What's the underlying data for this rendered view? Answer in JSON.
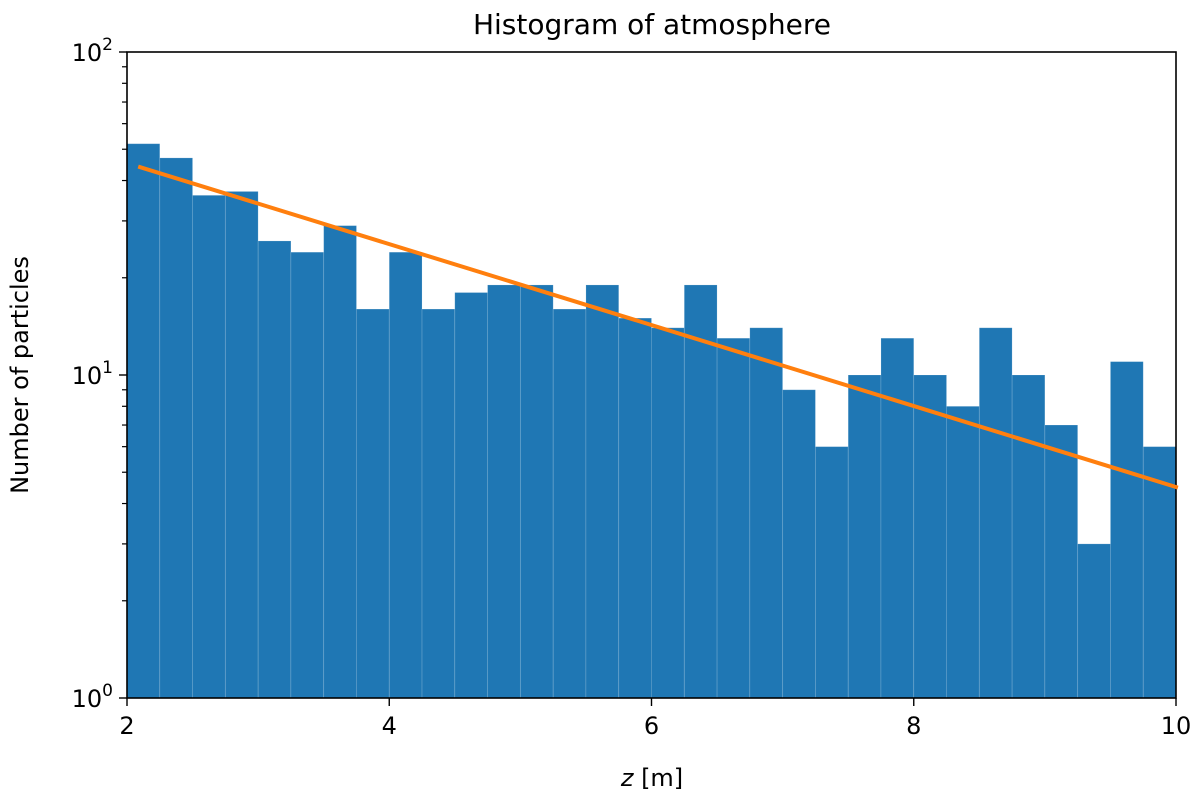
{
  "chart_data": {
    "type": "bar",
    "title": "Histogram of atmosphere",
    "xlabel": {
      "var": "z",
      "unit": "[m]"
    },
    "ylabel": "Number of particles",
    "xlim": [
      2,
      10
    ],
    "ylim": [
      1,
      100
    ],
    "yscale": "log",
    "grid": false,
    "bar_color": "#1f77b4",
    "line_color": "#ff7f0e",
    "x_ticks": [
      {
        "value": 2,
        "label": "2"
      },
      {
        "value": 4,
        "label": "4"
      },
      {
        "value": 6,
        "label": "6"
      },
      {
        "value": 8,
        "label": "8"
      },
      {
        "value": 10,
        "label": "10"
      }
    ],
    "y_ticks": [
      {
        "value": 1,
        "base": "10",
        "exp": "0"
      },
      {
        "value": 10,
        "base": "10",
        "exp": "1"
      },
      {
        "value": 100,
        "base": "10",
        "exp": "2"
      }
    ],
    "bins": {
      "edges": [
        2.0,
        2.25,
        2.5,
        2.75,
        3.0,
        3.25,
        3.5,
        3.75,
        4.0,
        4.25,
        4.5,
        4.75,
        5.0,
        5.25,
        5.5,
        5.75,
        6.0,
        6.25,
        6.5,
        6.75,
        7.0,
        7.25,
        7.5,
        7.75,
        8.0,
        8.25,
        8.5,
        8.75,
        9.0,
        9.25,
        9.5,
        9.75,
        10.0
      ],
      "counts": [
        52,
        47,
        36,
        37,
        26,
        24,
        29,
        16,
        24,
        16,
        18,
        19,
        19,
        16,
        19,
        15,
        14,
        19,
        13,
        14,
        9,
        6,
        10,
        13,
        10,
        8,
        14,
        10,
        7,
        3,
        11,
        6
      ]
    },
    "fit_line": {
      "x": [
        2.1,
        10.0
      ],
      "y": [
        44,
        4.5
      ]
    }
  }
}
